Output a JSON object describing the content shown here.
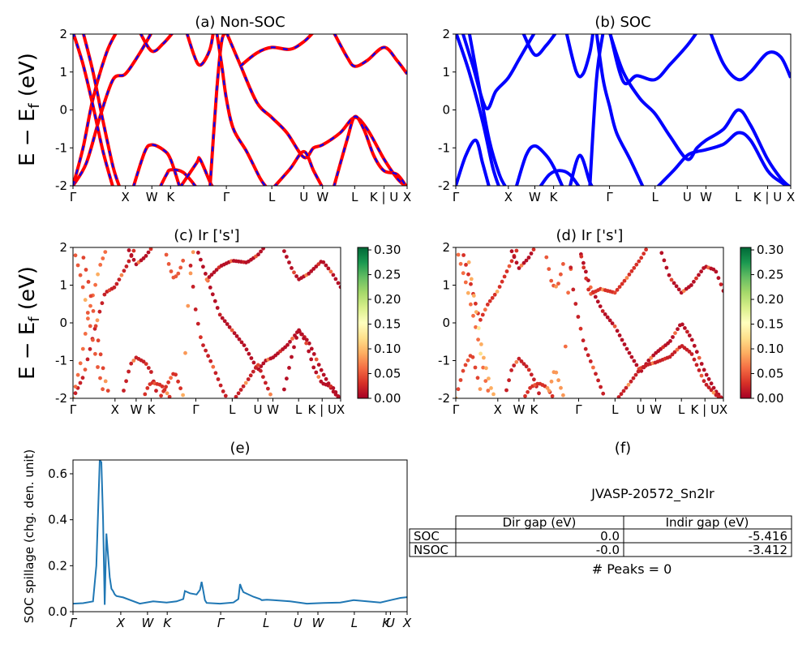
{
  "colors": {
    "nonsoc_primary": "#ff0000",
    "nonsoc_secondary": "#0000ff",
    "soc_bands": "#0000ff",
    "spillage": "#1f77b4",
    "colormap": "RdYlGn",
    "colormap_stops": [
      "#a50026",
      "#d73027",
      "#f46d43",
      "#fdae61",
      "#fee08b",
      "#ffffbf",
      "#d9ef8b",
      "#a6d96a",
      "#66bd63",
      "#1a9850",
      "#006837"
    ]
  },
  "panels": {
    "a": {
      "title": "(a) Non-SOC"
    },
    "b": {
      "title": "(b) SOC"
    },
    "c": {
      "title": "(c)  Ir ['s']"
    },
    "d": {
      "title": "(d) Ir ['s']"
    },
    "e": {
      "title": "(e)"
    },
    "f": {
      "title": "(f)"
    }
  },
  "axes": {
    "band_ylabel": "E − E_f (eV)",
    "spillage_ylabel": "SOC spillage (chg. den. unit)"
  },
  "kpath": {
    "labels": [
      "Γ",
      "X",
      "W",
      "K",
      "Γ",
      "L",
      "U",
      "W",
      "L",
      "K | U",
      "X"
    ],
    "positions": [
      0,
      0.157,
      0.236,
      0.292,
      0.459,
      0.595,
      0.691,
      0.747,
      0.843,
      0.931,
      1.0
    ]
  },
  "kpath_e": {
    "labels": [
      "Γ",
      "X",
      "W",
      "K",
      "Γ",
      "L",
      "U",
      "W",
      "L",
      "K",
      "U",
      "X"
    ],
    "positions": [
      0,
      0.143,
      0.223,
      0.282,
      0.442,
      0.578,
      0.673,
      0.733,
      0.842,
      0.937,
      0.95,
      1.0
    ]
  },
  "band_yticks": [
    -2,
    -1,
    0,
    1,
    2
  ],
  "colorbar_ticks": [
    "0.00",
    "0.05",
    "0.10",
    "0.15",
    "0.20",
    "0.25",
    "0.30"
  ],
  "spillage_yticks": [
    "0.0",
    "0.2",
    "0.4",
    "0.6"
  ],
  "info": {
    "title": "JVASP-20572_Sn2Ir",
    "headers": [
      "Dir gap (eV)",
      "Indir gap (eV)"
    ],
    "rows": [
      {
        "label": "SOC",
        "dir": "0.0",
        "indir": "-5.416"
      },
      {
        "label": "NSOC",
        "dir": "-0.0",
        "indir": "-3.412"
      }
    ],
    "peaks": "# Peaks = 0"
  },
  "chart_data": [
    {
      "type": "line",
      "title": "(a) Non-SOC",
      "xlabel": "",
      "ylabel": "E − E_f (eV)",
      "ylim": [
        -2,
        2
      ],
      "x_ticklabels": [
        "Γ",
        "X",
        "W",
        "K",
        "Γ",
        "L",
        "U",
        "W",
        "L",
        "K | U",
        "X"
      ],
      "bands": [
        [
          [
            0,
            -2.0
          ],
          [
            0.04,
            -1.4
          ],
          [
            0.08,
            -0.2
          ],
          [
            0.12,
            0.8
          ],
          [
            0.157,
            0.95
          ],
          [
            0.2,
            1.5
          ],
          [
            0.236,
            2.05
          ]
        ],
        [
          [
            0,
            -2.0
          ],
          [
            0.03,
            -1.0
          ],
          [
            0.06,
            0.3
          ],
          [
            0.1,
            1.5
          ],
          [
            0.13,
            2.05
          ]
        ],
        [
          [
            0,
            2.05
          ],
          [
            0.03,
            1.2
          ],
          [
            0.06,
            0.1
          ],
          [
            0.09,
            -1.1
          ],
          [
            0.12,
            -2.05
          ]
        ],
        [
          [
            0.03,
            2.05
          ],
          [
            0.06,
            1.0
          ],
          [
            0.09,
            -0.3
          ],
          [
            0.12,
            -1.5
          ],
          [
            0.14,
            -2.05
          ]
        ],
        [
          [
            0.18,
            -2.05
          ],
          [
            0.215,
            -1.1
          ],
          [
            0.236,
            -0.92
          ],
          [
            0.27,
            -1.05
          ],
          [
            0.292,
            -1.3
          ],
          [
            0.32,
            -2.05
          ]
        ],
        [
          [
            0.26,
            -2.05
          ],
          [
            0.28,
            -1.7
          ],
          [
            0.292,
            -1.58
          ],
          [
            0.33,
            -1.65
          ],
          [
            0.37,
            -2.05
          ]
        ],
        [
          [
            0.2,
            2.05
          ],
          [
            0.236,
            1.55
          ],
          [
            0.27,
            1.75
          ],
          [
            0.3,
            2.05
          ]
        ],
        [
          [
            0.32,
            -2.05
          ],
          [
            0.37,
            -1.4
          ],
          [
            0.38,
            -1.3
          ],
          [
            0.41,
            -1.9
          ],
          [
            0.42,
            -2.05
          ]
        ],
        [
          [
            0.34,
            2.05
          ],
          [
            0.36,
            1.5
          ],
          [
            0.375,
            1.2
          ],
          [
            0.39,
            1.25
          ],
          [
            0.41,
            1.6
          ],
          [
            0.42,
            2.05
          ]
        ],
        [
          [
            0.41,
            -2.05
          ],
          [
            0.43,
            0.5
          ],
          [
            0.445,
            1.8
          ],
          [
            0.459,
            2.05
          ]
        ],
        [
          [
            0.43,
            2.05
          ],
          [
            0.445,
            1.2
          ],
          [
            0.459,
            0.3
          ],
          [
            0.48,
            -0.5
          ],
          [
            0.52,
            -1.1
          ],
          [
            0.56,
            -1.8
          ],
          [
            0.58,
            -2.05
          ]
        ],
        [
          [
            0.459,
            2.05
          ],
          [
            0.5,
            1.2
          ],
          [
            0.55,
            0.2
          ],
          [
            0.595,
            -0.2
          ],
          [
            0.64,
            -0.6
          ],
          [
            0.691,
            -1.25
          ],
          [
            0.72,
            -1.0
          ],
          [
            0.747,
            -0.92
          ],
          [
            0.8,
            -0.6
          ],
          [
            0.843,
            -0.2
          ],
          [
            0.88,
            -0.5
          ],
          [
            0.931,
            -1.3
          ],
          [
            0.97,
            -1.8
          ],
          [
            1.0,
            -2.05
          ]
        ],
        [
          [
            0.5,
            1.15
          ],
          [
            0.55,
            1.5
          ],
          [
            0.595,
            1.65
          ],
          [
            0.65,
            1.6
          ],
          [
            0.691,
            1.8
          ],
          [
            0.72,
            2.05
          ]
        ],
        [
          [
            0.6,
            -2.05
          ],
          [
            0.65,
            -1.55
          ],
          [
            0.691,
            -1.1
          ],
          [
            0.72,
            -1.6
          ],
          [
            0.747,
            -2.05
          ]
        ],
        [
          [
            0.78,
            2.05
          ],
          [
            0.82,
            1.4
          ],
          [
            0.843,
            1.15
          ],
          [
            0.88,
            1.3
          ],
          [
            0.931,
            1.65
          ],
          [
            0.97,
            1.3
          ],
          [
            1.0,
            0.95
          ]
        ],
        [
          [
            0.78,
            -2.05
          ],
          [
            0.82,
            -0.8
          ],
          [
            0.843,
            -0.18
          ],
          [
            0.87,
            -0.5
          ],
          [
            0.9,
            -1.2
          ],
          [
            0.93,
            -1.6
          ],
          [
            0.97,
            -1.7
          ],
          [
            1.0,
            -2.05
          ]
        ]
      ]
    },
    {
      "type": "line",
      "title": "(b) SOC",
      "xlabel": "",
      "ylabel": "",
      "ylim": [
        -2,
        2
      ],
      "x_ticklabels": [
        "Γ",
        "X",
        "W",
        "K",
        "Γ",
        "L",
        "U",
        "W",
        "L",
        "K | U",
        "X"
      ],
      "bands": [
        [
          [
            0,
            2.05
          ],
          [
            0.04,
            1.0
          ],
          [
            0.08,
            -0.3
          ],
          [
            0.11,
            -1.5
          ],
          [
            0.13,
            -2.05
          ]
        ],
        [
          [
            0.02,
            2.05
          ],
          [
            0.05,
            1.2
          ],
          [
            0.09,
            0.05
          ],
          [
            0.12,
            0.5
          ],
          [
            0.157,
            0.85
          ],
          [
            0.19,
            1.35
          ],
          [
            0.236,
            2.05
          ]
        ],
        [
          [
            0.04,
            2.05
          ],
          [
            0.07,
            0.6
          ],
          [
            0.1,
            -0.8
          ],
          [
            0.13,
            -1.7
          ],
          [
            0.15,
            -2.05
          ]
        ],
        [
          [
            0,
            -2.0
          ],
          [
            0.03,
            -1.2
          ],
          [
            0.06,
            -0.8
          ],
          [
            0.08,
            -1.4
          ],
          [
            0.1,
            -2.05
          ]
        ],
        [
          [
            0.18,
            -2.05
          ],
          [
            0.21,
            -1.2
          ],
          [
            0.236,
            -0.95
          ],
          [
            0.27,
            -1.2
          ],
          [
            0.292,
            -1.5
          ],
          [
            0.32,
            -2.05
          ]
        ],
        [
          [
            0.25,
            -2.05
          ],
          [
            0.28,
            -1.7
          ],
          [
            0.31,
            -1.6
          ],
          [
            0.34,
            -1.7
          ],
          [
            0.37,
            -2.05
          ]
        ],
        [
          [
            0.2,
            2.05
          ],
          [
            0.236,
            1.45
          ],
          [
            0.27,
            1.7
          ],
          [
            0.3,
            2.05
          ]
        ],
        [
          [
            0.33,
            2.05
          ],
          [
            0.36,
            1.0
          ],
          [
            0.38,
            0.95
          ],
          [
            0.4,
            1.5
          ],
          [
            0.41,
            2.05
          ]
        ],
        [
          [
            0.34,
            -2.05
          ],
          [
            0.37,
            -1.2
          ],
          [
            0.4,
            -1.9
          ],
          [
            0.41,
            -2.05
          ]
        ],
        [
          [
            0.4,
            -2.05
          ],
          [
            0.42,
            0.8
          ],
          [
            0.44,
            2.05
          ]
        ],
        [
          [
            0.42,
            2.05
          ],
          [
            0.44,
            0.8
          ],
          [
            0.459,
            0.1
          ],
          [
            0.48,
            -0.6
          ],
          [
            0.52,
            -1.3
          ],
          [
            0.56,
            -2.05
          ]
        ],
        [
          [
            0.459,
            2.05
          ],
          [
            0.5,
            1.0
          ],
          [
            0.55,
            0.3
          ],
          [
            0.595,
            -0.1
          ],
          [
            0.64,
            -0.7
          ],
          [
            0.691,
            -1.3
          ],
          [
            0.72,
            -1.0
          ],
          [
            0.747,
            -0.8
          ],
          [
            0.8,
            -0.5
          ],
          [
            0.843,
            0.0
          ],
          [
            0.88,
            -0.4
          ],
          [
            0.931,
            -1.3
          ],
          [
            0.97,
            -1.8
          ],
          [
            1.0,
            -2.05
          ]
        ],
        [
          [
            0.46,
            2.05
          ],
          [
            0.5,
            0.75
          ],
          [
            0.54,
            0.9
          ],
          [
            0.595,
            0.8
          ],
          [
            0.64,
            1.2
          ],
          [
            0.691,
            1.7
          ],
          [
            0.72,
            2.05
          ]
        ],
        [
          [
            0.6,
            -2.05
          ],
          [
            0.65,
            -1.6
          ],
          [
            0.691,
            -1.2
          ],
          [
            0.72,
            -1.1
          ],
          [
            0.747,
            -1.05
          ],
          [
            0.8,
            -0.9
          ],
          [
            0.843,
            -0.6
          ],
          [
            0.88,
            -0.8
          ],
          [
            0.931,
            -1.6
          ],
          [
            0.97,
            -1.9
          ],
          [
            1.0,
            -2.05
          ]
        ],
        [
          [
            0.76,
            2.05
          ],
          [
            0.8,
            1.2
          ],
          [
            0.843,
            0.8
          ],
          [
            0.88,
            1.0
          ],
          [
            0.931,
            1.5
          ],
          [
            0.97,
            1.4
          ],
          [
            1.0,
            0.85
          ]
        ]
      ]
    },
    {
      "type": "scatter",
      "title": "(c)  Ir ['s']",
      "ylabel": "E − E_f (eV)",
      "ylim": [
        -2,
        2
      ],
      "colorbar_range": [
        0.0,
        0.3
      ],
      "x_ticklabels": [
        "Γ",
        "X",
        "W",
        "K",
        "Γ",
        "L",
        "U",
        "W",
        "L",
        "K | U",
        "X"
      ],
      "bands_from": 0,
      "weights": [
        0.02,
        0.06,
        0.05,
        0.04,
        0.02,
        0.03,
        0.01,
        0.03,
        0.05,
        0.08,
        0.02,
        0.01,
        0.01,
        0.02,
        0.01,
        0.01
      ]
    },
    {
      "type": "scatter",
      "title": "(d) Ir ['s']",
      "ylabel": "",
      "ylim": [
        -2,
        2
      ],
      "colorbar_range": [
        0.0,
        0.3
      ],
      "x_ticklabels": [
        "Γ",
        "X",
        "W",
        "K",
        "Γ",
        "L",
        "U",
        "W",
        "L",
        "K | U",
        "X"
      ],
      "bands_from": 1,
      "weights": [
        0.06,
        0.03,
        0.09,
        0.04,
        0.02,
        0.03,
        0.01,
        0.05,
        0.08,
        0.06,
        0.02,
        0.01,
        0.03,
        0.02,
        0.01
      ]
    },
    {
      "type": "line",
      "title": "(e)",
      "xlabel": "",
      "ylabel": "SOC spillage (chg. den. unit)",
      "ylim": [
        0,
        0.66
      ],
      "x_ticklabels": [
        "Γ",
        "X",
        "W",
        "K",
        "Γ",
        "L",
        "U",
        "W",
        "L",
        "K",
        "U",
        "X"
      ],
      "x": [
        0,
        0.03,
        0.06,
        0.07,
        0.08,
        0.085,
        0.09,
        0.095,
        0.1,
        0.11,
        0.115,
        0.12,
        0.125,
        0.13,
        0.15,
        0.2,
        0.24,
        0.28,
        0.31,
        0.33,
        0.335,
        0.35,
        0.37,
        0.38,
        0.385,
        0.39,
        0.395,
        0.4,
        0.44,
        0.48,
        0.495,
        0.5,
        0.505,
        0.51,
        0.54,
        0.56,
        0.565,
        0.58,
        0.6,
        0.65,
        0.7,
        0.75,
        0.8,
        0.84,
        0.88,
        0.92,
        0.95,
        0.98,
        1.0
      ],
      "series": [
        {
          "values": [
            0.035,
            0.037,
            0.045,
            0.2,
            0.66,
            0.65,
            0.4,
            0.03,
            0.34,
            0.15,
            0.1,
            0.09,
            0.075,
            0.068,
            0.062,
            0.035,
            0.045,
            0.04,
            0.045,
            0.055,
            0.09,
            0.08,
            0.075,
            0.095,
            0.13,
            0.09,
            0.05,
            0.038,
            0.035,
            0.04,
            0.055,
            0.12,
            0.1,
            0.085,
            0.065,
            0.055,
            0.05,
            0.052,
            0.05,
            0.045,
            0.035,
            0.038,
            0.04,
            0.05,
            0.045,
            0.04,
            0.05,
            0.06,
            0.063
          ]
        }
      ]
    }
  ]
}
